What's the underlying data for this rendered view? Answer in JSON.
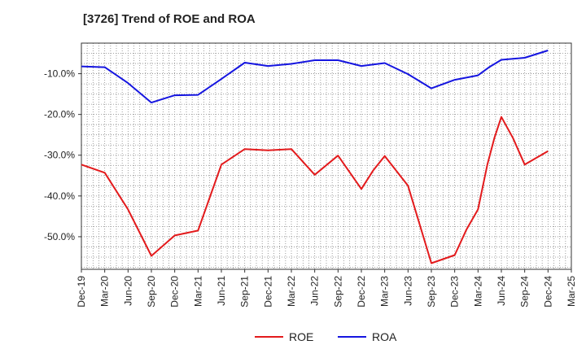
{
  "chart_data": {
    "type": "line",
    "title": "[3726]  Trend of ROE and ROA",
    "xlabel": "",
    "ylabel": "",
    "x_tick_labels": [
      "Dec-19",
      "Mar-20",
      "Jun-20",
      "Sep-20",
      "Dec-20",
      "Mar-21",
      "Jun-21",
      "Sep-21",
      "Dec-21",
      "Mar-22",
      "Jun-22",
      "Sep-22",
      "Dec-22",
      "Mar-23",
      "Jun-23",
      "Sep-23",
      "Dec-23",
      "Mar-24",
      "Jun-24",
      "Sep-24",
      "Dec-24",
      "Mar-25"
    ],
    "y_ticks": [
      -50,
      -40,
      -30,
      -20,
      -10
    ],
    "y_tick_labels": [
      "-50.0%",
      "-40.0%",
      "-30.0%",
      "-20.0%",
      "-10.0%"
    ],
    "ylim": [
      -58,
      -2.5
    ],
    "grid": true,
    "legend_position": "bottom",
    "series": [
      {
        "name": "ROE",
        "color": "#e31a1c",
        "points": [
          [
            0,
            -32.3
          ],
          [
            1,
            -34.3
          ],
          [
            2,
            -43.3
          ],
          [
            3,
            -54.7
          ],
          [
            4,
            -49.7
          ],
          [
            5,
            -48.5
          ],
          [
            6,
            -32.3
          ],
          [
            7,
            -28.5
          ],
          [
            8,
            -28.8
          ],
          [
            9,
            -28.5
          ],
          [
            10,
            -34.8
          ],
          [
            11,
            -30.1
          ],
          [
            12,
            -38.3
          ],
          [
            12.5,
            -33.8
          ],
          [
            13,
            -30.2
          ],
          [
            14,
            -37.5
          ],
          [
            15,
            -56.5
          ],
          [
            16,
            -54.5
          ],
          [
            16.5,
            -48.3
          ],
          [
            17,
            -43.3
          ],
          [
            17.4,
            -32.3
          ],
          [
            17.7,
            -25.8
          ],
          [
            18,
            -20.6
          ],
          [
            18.5,
            -25.8
          ],
          [
            19,
            -32.3
          ],
          [
            20,
            -29.0
          ]
        ]
      },
      {
        "name": "ROA",
        "color": "#1515e0",
        "points": [
          [
            0,
            -8.2
          ],
          [
            1,
            -8.4
          ],
          [
            2,
            -12.3
          ],
          [
            3,
            -17.1
          ],
          [
            4,
            -15.3
          ],
          [
            5,
            -15.2
          ],
          [
            6,
            -11.3
          ],
          [
            7,
            -7.3
          ],
          [
            8,
            -8.1
          ],
          [
            9,
            -7.6
          ],
          [
            10,
            -6.7
          ],
          [
            11,
            -6.7
          ],
          [
            12,
            -8.1
          ],
          [
            13,
            -7.4
          ],
          [
            14,
            -10.1
          ],
          [
            15,
            -13.6
          ],
          [
            16,
            -11.5
          ],
          [
            17,
            -10.4
          ],
          [
            17.5,
            -8.3
          ],
          [
            18,
            -6.6
          ],
          [
            19,
            -6.1
          ],
          [
            20,
            -4.3
          ]
        ]
      }
    ]
  }
}
